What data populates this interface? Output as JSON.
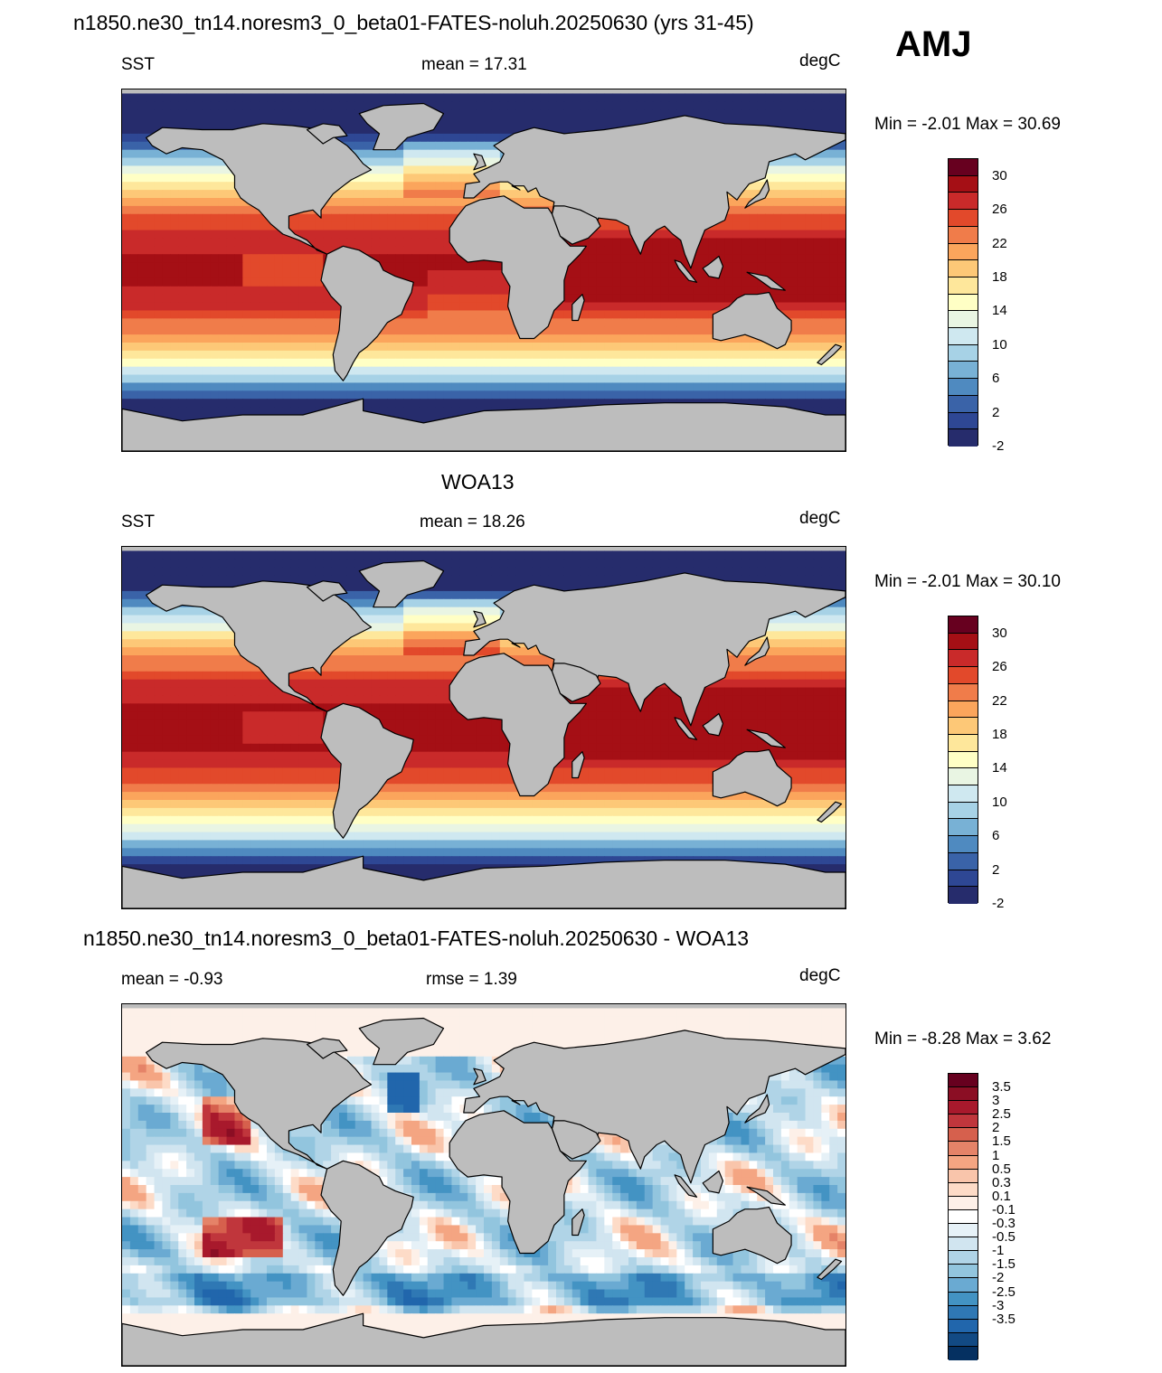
{
  "season": "AMJ",
  "panels": [
    {
      "title": "n1850.ne30_tn14.noresm3_0_beta01-FATES-noluh.20250630 (yrs 31-45)",
      "left": "SST",
      "center": "mean =  17.31",
      "right": "degC",
      "minmax": "Min =  -2.01 Max =  30.69",
      "field": "model",
      "legend": {
        "labels": [
          "30",
          "26",
          "22",
          "18",
          "14",
          "10",
          "6",
          "2",
          "-2"
        ],
        "colors": [
          "#67001f",
          "#a50f15",
          "#c92a2a",
          "#e2492b",
          "#f07c4a",
          "#fba55c",
          "#fdc877",
          "#fee79b",
          "#ffffc5",
          "#e9f5e3",
          "#cfe8f0",
          "#a7d2e6",
          "#78b1d5",
          "#4f8ac0",
          "#3a63a8",
          "#2e4794",
          "#262c6c"
        ]
      }
    },
    {
      "title": "WOA13",
      "left": "SST",
      "center": "mean =  18.26",
      "right": "degC",
      "minmax": "Min =  -2.01 Max =  30.10",
      "field": "obs",
      "legend": {
        "labels": [
          "30",
          "26",
          "22",
          "18",
          "14",
          "10",
          "6",
          "2",
          "-2"
        ],
        "colors": [
          "#67001f",
          "#a50f15",
          "#c92a2a",
          "#e2492b",
          "#f07c4a",
          "#fba55c",
          "#fdc877",
          "#fee79b",
          "#ffffc5",
          "#e9f5e3",
          "#cfe8f0",
          "#a7d2e6",
          "#78b1d5",
          "#4f8ac0",
          "#3a63a8",
          "#2e4794",
          "#262c6c"
        ]
      }
    },
    {
      "title": "n1850.ne30_tn14.noresm3_0_beta01-FATES-noluh.20250630 - WOA13",
      "left": "mean =  -0.93",
      "center": "rmse =   1.39",
      "right": "degC",
      "minmax": "Min =  -8.28 Max =   3.62",
      "field": "diff",
      "legend": {
        "labels": [
          "3.5",
          "3",
          "2.5",
          "2",
          "1.5",
          "1",
          "0.5",
          "0.3",
          "0.1",
          "-0.1",
          "-0.3",
          "-0.5",
          "-1",
          "-1.5",
          "-2",
          "-2.5",
          "-3",
          "-3.5"
        ],
        "colors": [
          "#67001f",
          "#8b0e24",
          "#a8192c",
          "#c0363c",
          "#d6604d",
          "#e58368",
          "#f4a582",
          "#f9c5ab",
          "#fddbc7",
          "#fdf0e8",
          "#ffffff",
          "#e6f1f7",
          "#d1e5f0",
          "#b0d4e7",
          "#92c5de",
          "#6aaad2",
          "#4393c3",
          "#2f78b4",
          "#2166ac",
          "#124a84",
          "#053061"
        ]
      }
    }
  ],
  "land_color": "#bdbdbd"
}
